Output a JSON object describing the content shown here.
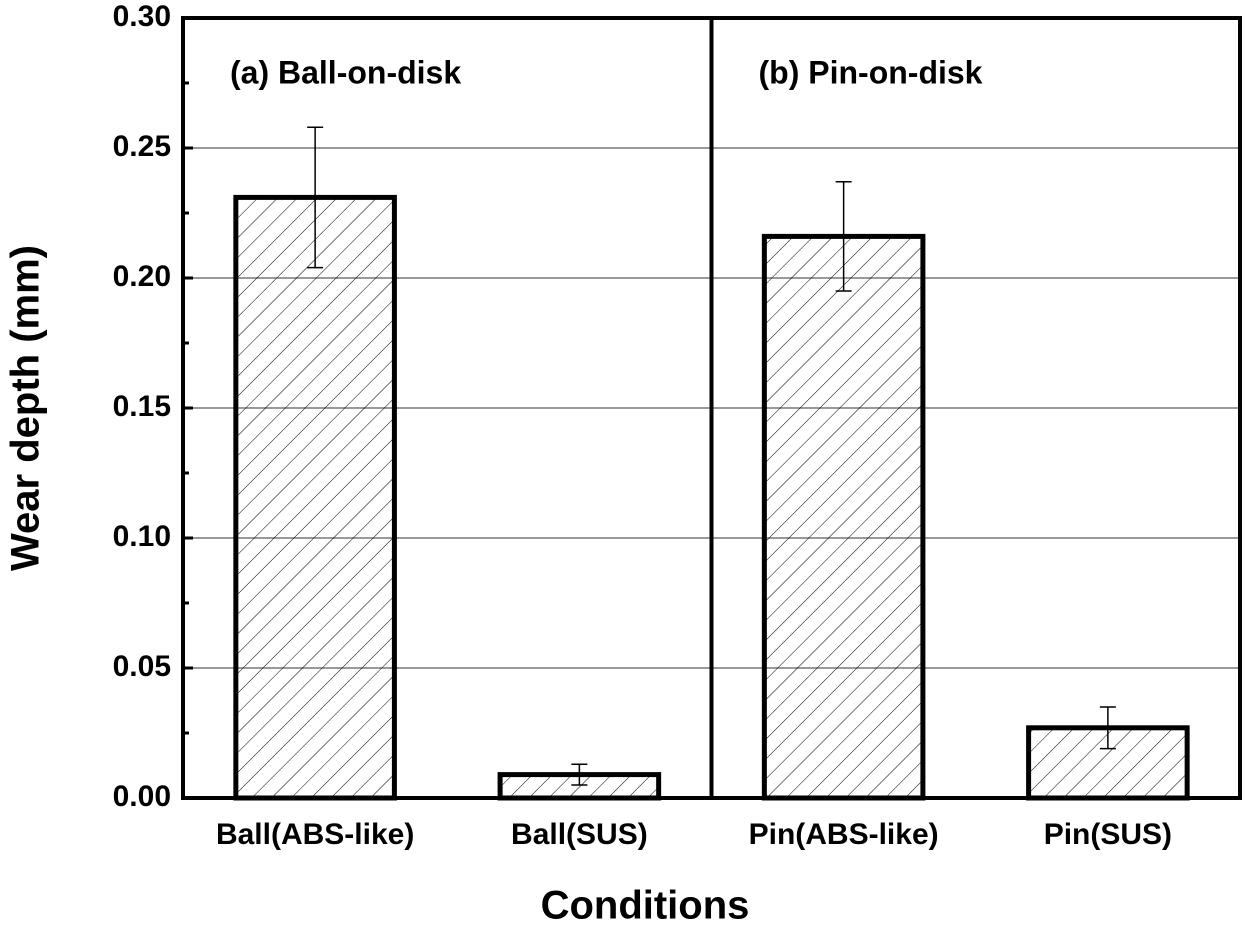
{
  "chart_data": {
    "type": "bar",
    "panels": [
      "(a) Ball-on-disk",
      "(b) Pin-on-disk"
    ],
    "categories": [
      "Ball(ABS-like)",
      "Ball(SUS)",
      "Pin(ABS-like)",
      "Pin(SUS)"
    ],
    "values": [
      0.231,
      0.009,
      0.216,
      0.027
    ],
    "errors": [
      0.027,
      0.004,
      0.021,
      0.008
    ],
    "x_label": "Conditions",
    "y_label": "Wear depth (mm)",
    "ylim": [
      0,
      0.3
    ],
    "yticks": [
      {
        "value": 0,
        "label": "0.00"
      },
      {
        "value": 0.05,
        "label": "0.05"
      },
      {
        "value": 0.1,
        "label": "0.10"
      },
      {
        "value": 0.15,
        "label": "0.15"
      },
      {
        "value": 0.2,
        "label": "0.20"
      },
      {
        "value": 0.25,
        "label": "0.25"
      },
      {
        "value": 0.3,
        "label": "0.30"
      }
    ],
    "yminorticks": [
      0.025,
      0.075,
      0.125,
      0.175,
      0.225,
      0.275
    ],
    "grid": true,
    "color": "#000000",
    "hatch": true
  }
}
